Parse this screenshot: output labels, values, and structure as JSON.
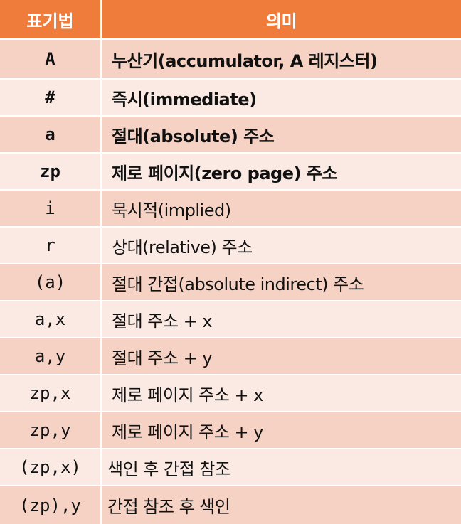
{
  "header": {
    "notation": "표기법",
    "meaning": "의미"
  },
  "rows": [
    {
      "notation": "A",
      "meaning": "누산기(accumulator, A 레지스터)",
      "bold": true
    },
    {
      "notation": "#",
      "meaning": "즉시(immediate)",
      "bold": true
    },
    {
      "notation": "a",
      "meaning": "절대(absolute) 주소",
      "bold": true
    },
    {
      "notation": "zp",
      "meaning": "제로 페이지(zero page) 주소",
      "bold": true
    },
    {
      "notation": "i",
      "meaning": "묵시적(implied)",
      "bold": false
    },
    {
      "notation": "r",
      "meaning": "상대(relative) 주소",
      "bold": false
    },
    {
      "notation": "(a)",
      "meaning": "절대 간접(absolute indirect) 주소",
      "bold": false
    },
    {
      "notation": "a,x",
      "meaning": "절대 주소 + x",
      "bold": false
    },
    {
      "notation": "a,y",
      "meaning": "절대 주소 + y",
      "bold": false
    },
    {
      "notation": "zp,x",
      "meaning": "제로 페이지 주소 + x",
      "bold": false
    },
    {
      "notation": "zp,y",
      "meaning": "제로 페이지 주소 + y",
      "bold": false
    },
    {
      "notation": "(zp,x)",
      "meaning": "색인 후 간접 참조",
      "bold": false
    },
    {
      "notation": "(zp),y",
      "meaning": "간접 참조 후 색인",
      "bold": false
    }
  ],
  "colors": {
    "header": "#ef7c3a",
    "row_dark": "#f6d2c4",
    "row_light": "#fbe9e3"
  }
}
